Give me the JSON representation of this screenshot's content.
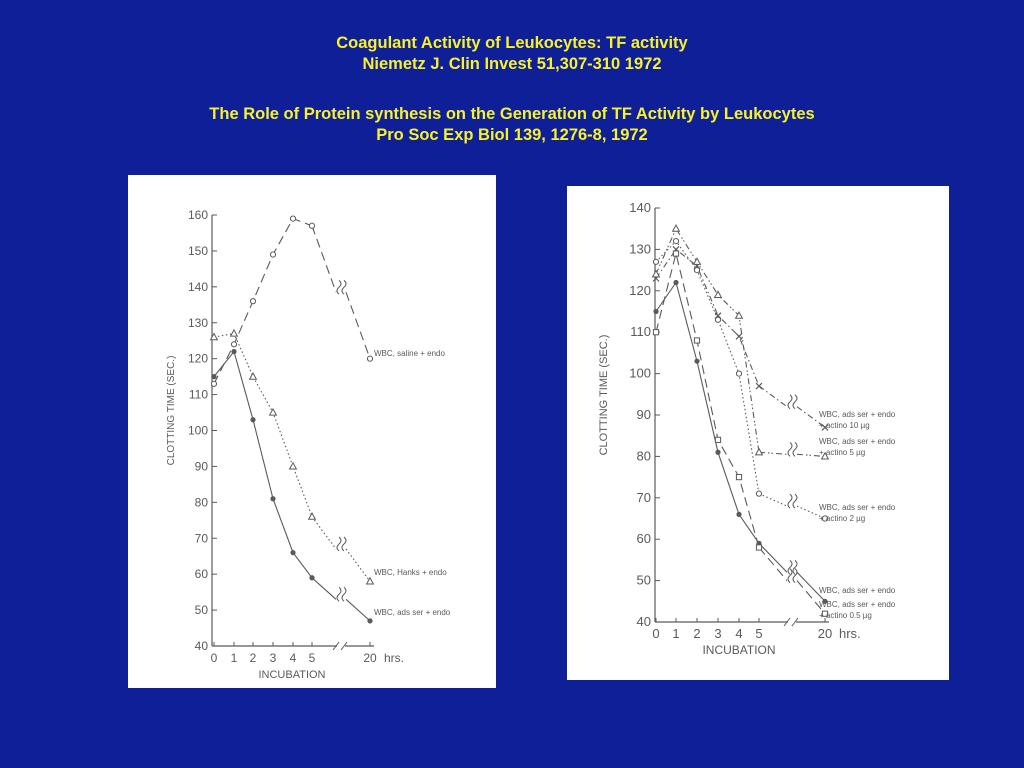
{
  "slide": {
    "title_line1": "Coagulant Activity of Leukocytes: TF activity",
    "title_line2": "Niemetz J.  Clin Invest 51,307-310 1972",
    "subtitle_line1": "The Role of Protein synthesis on the Generation of TF Activity by Leukocytes",
    "subtitle_line2": "Pro Soc Exp Biol 139, 1276-8, 1972",
    "background_color": "#0f1f97",
    "title_color": "#f7f22a"
  },
  "chart_data": [
    {
      "type": "line",
      "xlabel": "INCUBATION",
      "ylabel": "CLOTTING TIME (SEC.)",
      "x_unit": "hrs.",
      "x_ticks": [
        "0",
        "1",
        "2",
        "3",
        "4",
        "5",
        "20"
      ],
      "y_ticks": [
        40,
        50,
        60,
        70,
        80,
        90,
        100,
        110,
        120,
        130,
        140,
        150,
        160
      ],
      "ylim": [
        40,
        160
      ],
      "grid": false,
      "axis_break": "x between 5 and 20",
      "series": [
        {
          "name": "WBC, saline + endo",
          "marker": "open-circle",
          "line": "long-dash",
          "x": [
            0,
            1,
            2,
            3,
            4,
            5,
            20
          ],
          "y": [
            113,
            124,
            136,
            149,
            159,
            157,
            120
          ]
        },
        {
          "name": "WBC, Hanks + endo",
          "marker": "open-triangle",
          "line": "dotted",
          "x": [
            0,
            1,
            2,
            3,
            4,
            5,
            20
          ],
          "y": [
            126,
            127,
            115,
            105,
            90,
            76,
            58
          ]
        },
        {
          "name": "WBC, ads ser + endo",
          "marker": "filled-circle",
          "line": "solid",
          "x": [
            0,
            1,
            2,
            3,
            4,
            5,
            20
          ],
          "y": [
            115,
            122,
            103,
            81,
            66,
            59,
            47
          ]
        }
      ]
    },
    {
      "type": "line",
      "xlabel": "INCUBATION",
      "ylabel": "CLOTTING TIME (SEC.)",
      "x_unit": "hrs.",
      "x_ticks": [
        "0",
        "1",
        "2",
        "3",
        "4",
        "5",
        "20"
      ],
      "y_ticks": [
        40,
        50,
        60,
        70,
        80,
        90,
        100,
        110,
        120,
        130,
        140
      ],
      "ylim": [
        40,
        140
      ],
      "grid": false,
      "axis_break": "x between 5 and 20",
      "series": [
        {
          "name": "WBC, ads ser + endo + actino 10 µg",
          "marker": "cross",
          "line": "dash-dot",
          "x": [
            0,
            1,
            2,
            3,
            4,
            5,
            20
          ],
          "y": [
            123,
            130,
            126,
            114,
            109,
            97,
            87
          ]
        },
        {
          "name": "WBC, ads ser + endo + actino 5 µg",
          "marker": "open-triangle",
          "line": "dash-dot-dot",
          "x": [
            0,
            1,
            2,
            3,
            4,
            5,
            20
          ],
          "y": [
            124,
            135,
            127,
            119,
            114,
            81,
            80
          ]
        },
        {
          "name": "WBC, ads ser + endo + actino 2 µg",
          "marker": "open-circle",
          "line": "dotted",
          "x": [
            0,
            1,
            2,
            3,
            4,
            5,
            20
          ],
          "y": [
            127,
            132,
            125,
            113,
            100,
            71,
            65
          ]
        },
        {
          "name": "WBC, ads ser + endo",
          "marker": "filled-circle",
          "line": "solid",
          "x": [
            0,
            1,
            2,
            3,
            4,
            5,
            20
          ],
          "y": [
            115,
            122,
            103,
            81,
            66,
            59,
            45
          ]
        },
        {
          "name": "WBC, ads ser + endo + actino 0.5 µg",
          "marker": "open-square",
          "line": "long-dash",
          "x": [
            0,
            1,
            2,
            3,
            4,
            5,
            20
          ],
          "y": [
            110,
            129,
            108,
            84,
            75,
            58,
            42
          ]
        }
      ]
    }
  ]
}
